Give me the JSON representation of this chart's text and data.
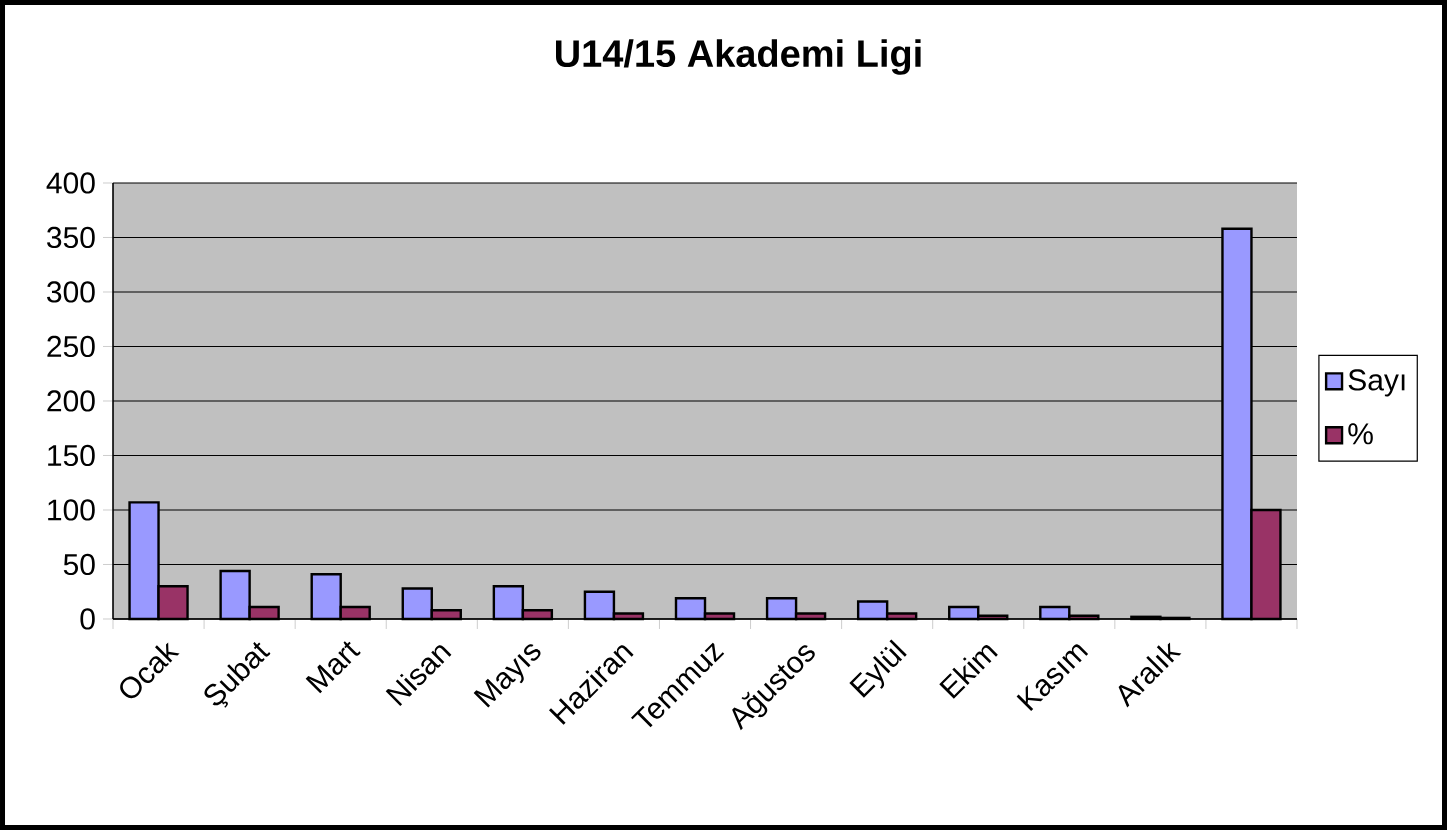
{
  "chart_data": {
    "type": "bar",
    "title": "U14/15 Akademi Ligi",
    "categories": [
      "Ocak",
      "Şubat",
      "Mart",
      "Nisan",
      "Mayıs",
      "Haziran",
      "Temmuz",
      "Ağustos",
      "Eylül",
      "Ekim",
      "Kasım",
      "Aralık",
      null
    ],
    "series": [
      {
        "name": "Sayı",
        "color": "#9999ff",
        "values": [
          107,
          44,
          41,
          28,
          30,
          25,
          19,
          19,
          16,
          11,
          11,
          2,
          358
        ]
      },
      {
        "name": "%",
        "color": "#993366",
        "values": [
          30,
          11,
          11,
          8,
          8,
          5,
          5,
          5,
          5,
          3,
          3,
          1,
          100
        ]
      }
    ],
    "ylim": [
      0,
      400
    ],
    "yticks": [
      0,
      50,
      100,
      150,
      200,
      250,
      300,
      350,
      400
    ],
    "grid": "y",
    "legend": "right"
  }
}
